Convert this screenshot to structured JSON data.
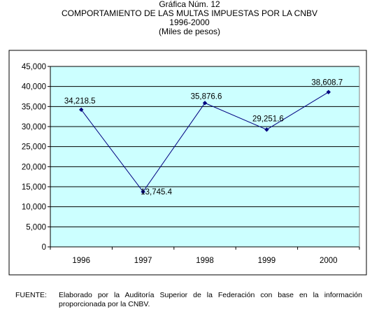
{
  "chart_data": {
    "type": "line",
    "title_lines": [
      "Gráfica Núm. 12",
      "COMPORTAMIENTO DE LAS MULTAS IMPUESTAS POR LA CNBV",
      "1996-2000",
      "(Miles de pesos)"
    ],
    "categories": [
      "1996",
      "1997",
      "1998",
      "1999",
      "2000"
    ],
    "values": [
      34218.5,
      13745.4,
      35876.6,
      29251.6,
      38608.7
    ],
    "data_labels": [
      "34,218.5",
      "13,745.4",
      "35,876.6",
      "29,251.6",
      "38,608.7"
    ],
    "y_ticks": [
      "0",
      "5,000",
      "10,000",
      "15,000",
      "20,000",
      "25,000",
      "30,000",
      "35,000",
      "40,000",
      "45,000"
    ],
    "ylim": [
      0,
      45000
    ],
    "grid": true,
    "legend": "none",
    "colors": {
      "plot_bg": "#ccffff",
      "line": "#000080",
      "marker": "#000080",
      "frame": "#000000"
    }
  },
  "source": {
    "label": "FUENTE:",
    "text": "Elaborado por la Auditoría Superior de la Federación con base en la información proporcionada por la CNBV."
  }
}
